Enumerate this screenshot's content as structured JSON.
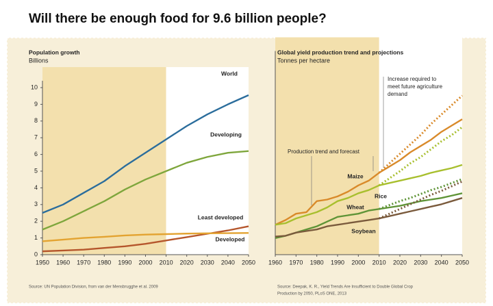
{
  "title": "Will there be enough food for 9.6 billion people?",
  "chart_data": [
    {
      "type": "line",
      "title": "Population growth",
      "ylabel": "Billions",
      "x": [
        1950,
        1960,
        1970,
        1980,
        1990,
        2000,
        2010,
        2020,
        2030,
        2040,
        2050
      ],
      "xlim": [
        1950,
        2050
      ],
      "xticks": [
        1950,
        1960,
        1970,
        1980,
        1990,
        2000,
        2010,
        2020,
        2030,
        2040,
        2050
      ],
      "ylim": [
        0,
        10
      ],
      "yticks": [
        0,
        1,
        2,
        3,
        4,
        5,
        6,
        7,
        8,
        9,
        10
      ],
      "shade_until": 2010,
      "series": [
        {
          "name": "World",
          "color": "#2b6d9c",
          "values": [
            2.5,
            3.0,
            3.7,
            4.4,
            5.3,
            6.1,
            6.9,
            7.7,
            8.4,
            9.0,
            9.55
          ]
        },
        {
          "name": "Developing",
          "color": "#7ea63c",
          "values": [
            1.5,
            2.0,
            2.6,
            3.2,
            3.9,
            4.5,
            5.0,
            5.5,
            5.85,
            6.1,
            6.2
          ]
        },
        {
          "name": "Least developed",
          "color": "#b5562c",
          "values": [
            0.2,
            0.25,
            0.3,
            0.4,
            0.5,
            0.65,
            0.85,
            1.05,
            1.25,
            1.45,
            1.7
          ]
        },
        {
          "name": "Developed",
          "color": "#e3a331",
          "values": [
            0.8,
            0.9,
            1.0,
            1.07,
            1.15,
            1.2,
            1.23,
            1.26,
            1.28,
            1.29,
            1.3
          ]
        }
      ],
      "source": [
        "Source: UN Population Division, from van der Mensbrugghe et al. 2009"
      ]
    },
    {
      "type": "line",
      "title": "Global yield production trend and projections",
      "ylabel": "Tonnes per hectare",
      "x": [
        1960,
        1965,
        1970,
        1975,
        1980,
        1985,
        1990,
        1995,
        2000,
        2005,
        2010,
        2015,
        2020,
        2025,
        2030,
        2035,
        2040,
        2045,
        2050
      ],
      "xlim": [
        1960,
        2050
      ],
      "xticks": [
        1960,
        1970,
        1980,
        1990,
        2000,
        2010,
        2020,
        2030,
        2040,
        2050
      ],
      "ylim": [
        0,
        12.5
      ],
      "shade_until": 2010,
      "series": [
        {
          "name": "Maize",
          "color": "#d98a2a",
          "values": [
            1.9,
            2.2,
            2.6,
            2.7,
            3.4,
            3.5,
            3.7,
            4.0,
            4.4,
            4.7,
            5.2,
            5.6,
            6.0,
            6.5,
            6.9,
            7.3,
            7.8,
            8.2,
            8.6
          ]
        },
        {
          "name": "Rice",
          "color": "#a8bf2e",
          "values": [
            1.9,
            2.0,
            2.3,
            2.5,
            2.7,
            3.0,
            3.4,
            3.6,
            3.9,
            4.1,
            4.4,
            4.55,
            4.7,
            4.85,
            5.0,
            5.2,
            5.35,
            5.5,
            5.7
          ]
        },
        {
          "name": "Wheat",
          "color": "#5f9437",
          "values": [
            1.05,
            1.2,
            1.4,
            1.6,
            1.8,
            2.1,
            2.4,
            2.5,
            2.6,
            2.8,
            2.9,
            3.0,
            3.1,
            3.25,
            3.4,
            3.5,
            3.6,
            3.75,
            3.9
          ]
        },
        {
          "name": "Soybean",
          "color": "#7a5a3c",
          "values": [
            1.15,
            1.2,
            1.4,
            1.5,
            1.6,
            1.8,
            1.9,
            2.0,
            2.1,
            2.2,
            2.3,
            2.45,
            2.6,
            2.75,
            2.9,
            3.05,
            3.2,
            3.4,
            3.6
          ]
        },
        {
          "color": "#d98a2a",
          "dashed": true,
          "values": [
            null,
            null,
            null,
            null,
            null,
            null,
            null,
            null,
            null,
            null,
            5.2,
            5.8,
            6.4,
            7.0,
            7.6,
            8.3,
            8.9,
            9.5,
            10.1
          ]
        },
        {
          "color": "#a8bf2e",
          "dashed": true,
          "values": [
            null,
            null,
            null,
            null,
            null,
            null,
            null,
            null,
            null,
            null,
            4.4,
            4.85,
            5.3,
            5.8,
            6.2,
            6.7,
            7.2,
            7.6,
            8.1
          ]
        },
        {
          "color": "#5f9437",
          "dashed": true,
          "values": [
            null,
            null,
            null,
            null,
            null,
            null,
            null,
            null,
            null,
            null,
            2.9,
            3.15,
            3.4,
            3.6,
            3.85,
            4.1,
            4.3,
            4.55,
            4.8
          ]
        },
        {
          "color": "#7a5a3c",
          "dashed": true,
          "values": [
            null,
            null,
            null,
            null,
            null,
            null,
            null,
            null,
            null,
            null,
            2.3,
            2.6,
            2.9,
            3.2,
            3.5,
            3.8,
            4.05,
            4.35,
            4.65
          ]
        }
      ],
      "annotations": [
        [
          "Production trend and forecast"
        ],
        [
          "Increase required to",
          "meet future agriculture",
          "demand"
        ]
      ],
      "source": [
        "Source: Deepak, K. R., Yield Trends Are Insufficient to Double Global Crop",
        "Production by 2050, PLoS ONE, 2013"
      ]
    }
  ]
}
